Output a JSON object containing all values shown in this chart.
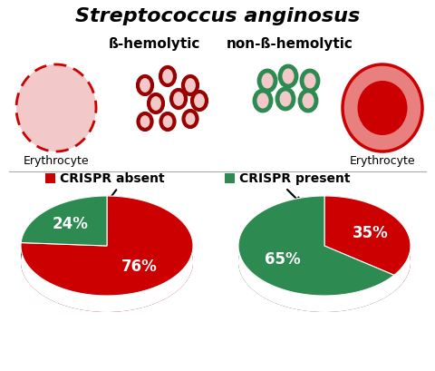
{
  "title": "Streptococcus anginosus",
  "label_beta": "ß-hemolytic",
  "label_nonbeta": "non-ß-hemolytic",
  "label_erythrocyte": "Erythrocyte",
  "legend_absent": "CRISPR absent",
  "legend_present": "CRISPR present",
  "pie1_values": [
    76,
    24
  ],
  "pie1_labels": [
    "76%",
    "24%"
  ],
  "pie1_colors": [
    "#cc0000",
    "#2d8a50"
  ],
  "pie2_values": [
    35,
    65
  ],
  "pie2_labels": [
    "35%",
    "65%"
  ],
  "pie2_colors": [
    "#cc0000",
    "#2d8a50"
  ],
  "red_color": "#cc0000",
  "dark_red": "#990000",
  "green_color": "#2d8a50",
  "dark_green": "#1a5c33",
  "light_pink": "#f2c8c8",
  "erythrocyte_fill": "#e88080",
  "erythrocyte_inner": "#cc0000",
  "erythrocyte_outer_border": "#cc0000",
  "background": "#ffffff"
}
